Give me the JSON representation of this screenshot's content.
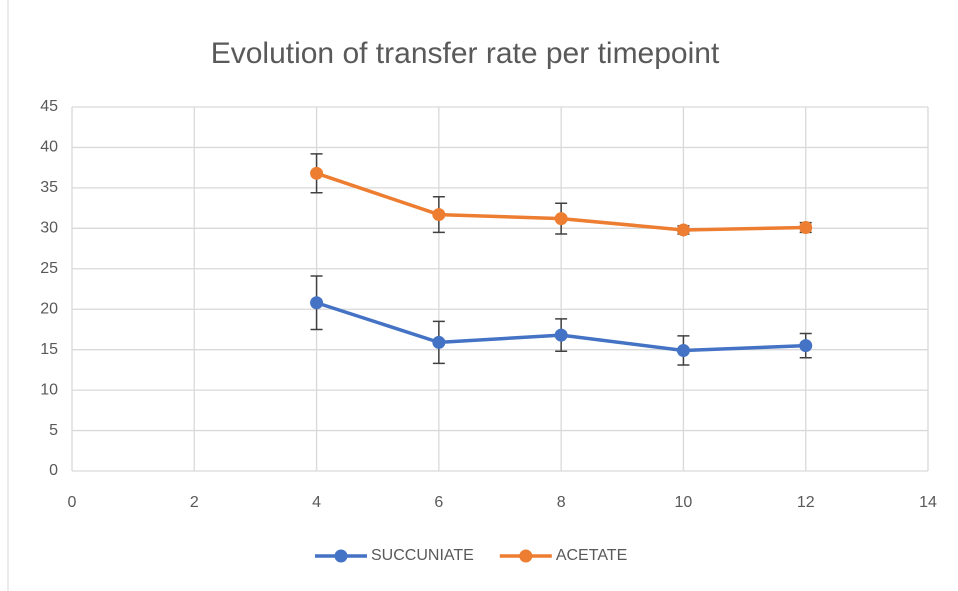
{
  "chart_data": {
    "type": "line",
    "title": "Evolution of transfer rate per timepoint",
    "x": [
      4,
      6,
      8,
      10,
      12
    ],
    "series": [
      {
        "name": "SUCCUNIATE",
        "color": "#4472c4",
        "values": [
          20.8,
          15.9,
          16.8,
          14.9,
          15.5
        ],
        "errors": [
          3.3,
          2.6,
          2.0,
          1.8,
          1.5
        ]
      },
      {
        "name": "ACETATE",
        "color": "#ed7d31",
        "values": [
          36.8,
          31.7,
          31.2,
          29.8,
          30.1
        ],
        "errors": [
          2.4,
          2.2,
          1.9,
          0.5,
          0.6
        ]
      }
    ],
    "xlim": [
      0,
      14
    ],
    "xticks": [
      0,
      2,
      4,
      6,
      8,
      10,
      12,
      14
    ],
    "ylim": [
      0,
      45
    ],
    "yticks": [
      0,
      5,
      10,
      15,
      20,
      25,
      30,
      35,
      40,
      45
    ],
    "grid": true,
    "legend": "bottom"
  }
}
